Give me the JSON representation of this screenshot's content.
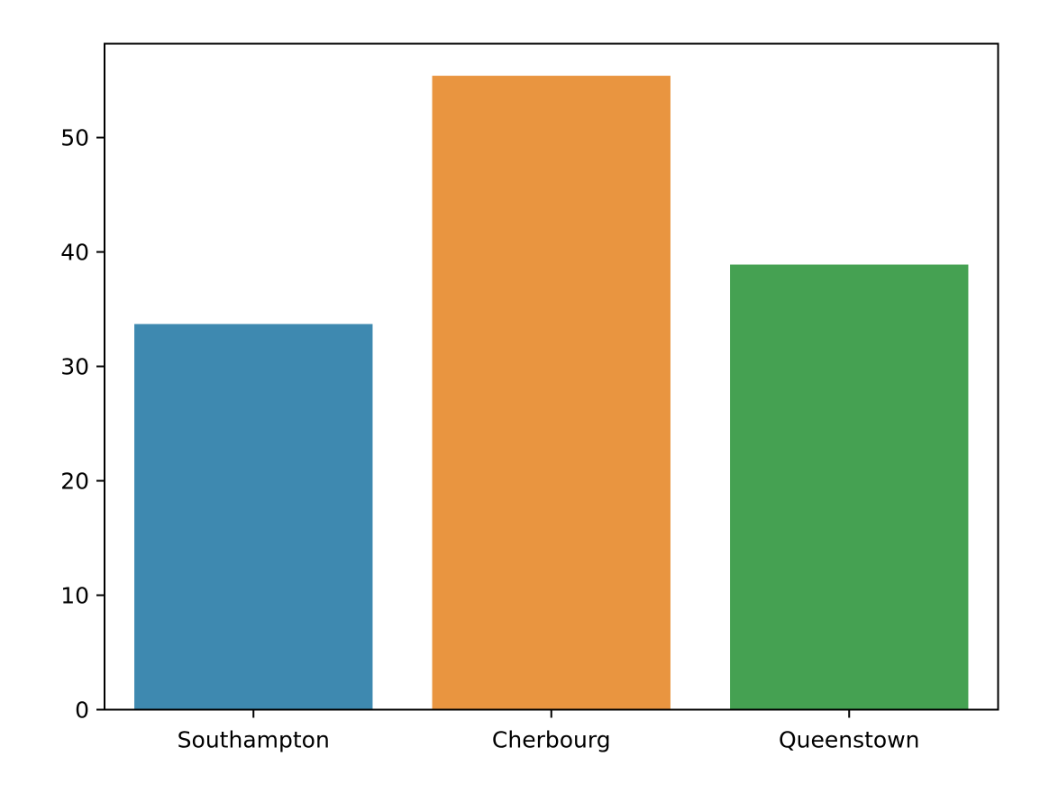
{
  "chart_data": {
    "type": "bar",
    "categories": [
      "Southampton",
      "Cherbourg",
      "Queenstown"
    ],
    "values": [
      33.7,
      55.4,
      38.9
    ],
    "colors": [
      "#3e89b0",
      "#e99540",
      "#45a152"
    ],
    "yticks": [
      0,
      10,
      20,
      30,
      40,
      50
    ],
    "ylim": [
      0,
      58.2
    ],
    "title": "",
    "xlabel": "",
    "ylabel": "",
    "grid": false
  }
}
